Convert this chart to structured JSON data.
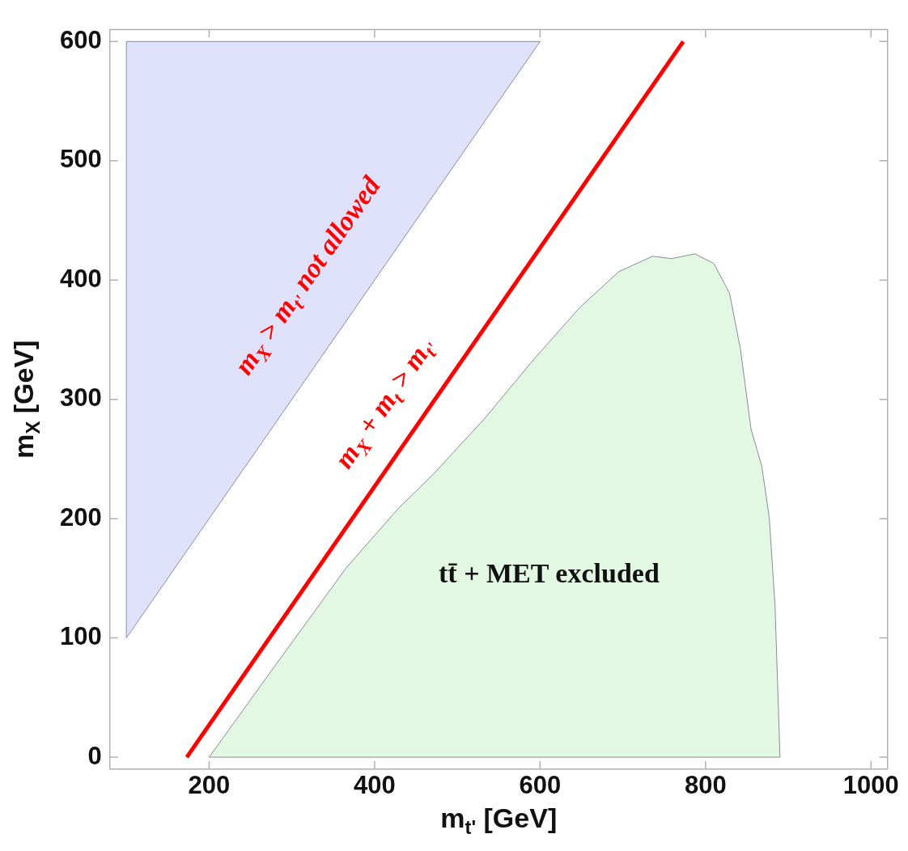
{
  "chart_data": {
    "type": "area",
    "xlabel": "m$_{t'}$ [GeV]",
    "ylabel": "m$_{X}$ [GeV]",
    "xlim": [
      80,
      1020
    ],
    "ylim": [
      -10,
      610
    ],
    "xticks": [
      200,
      400,
      600,
      800,
      1000
    ],
    "yticks": [
      0,
      100,
      200,
      300,
      400,
      500,
      600
    ],
    "grid": false,
    "legend": false,
    "series": [
      {
        "type": "area",
        "color": "#e0e2fb",
        "x": [
          100,
          100,
          600,
          100
        ],
        "values": [
          100,
          600,
          600,
          100
        ]
      },
      {
        "type": "line",
        "color": "#ff0000",
        "x": [
          173,
          773
        ],
        "values": [
          0,
          600
        ]
      },
      {
        "type": "area",
        "color": "#e2f8e2",
        "x": [
          200,
          280,
          366,
          428,
          472,
          533,
          593,
          648,
          695,
          736,
          759,
          787,
          810,
          829,
          842,
          855,
          868,
          877,
          884,
          890,
          200
        ],
        "values": [
          0,
          77,
          159,
          208,
          238,
          284,
          334,
          377,
          407,
          420,
          418,
          422,
          414,
          389,
          343,
          275,
          244,
          201,
          127,
          0,
          0
        ]
      }
    ],
    "annotations": [
      "m$_{X}$ > m$_{t'}$ not allowed",
      "m$_{X}$ + m$_{t}$ > m$_{t'}$",
      "tt̄ + MET excluded"
    ]
  }
}
